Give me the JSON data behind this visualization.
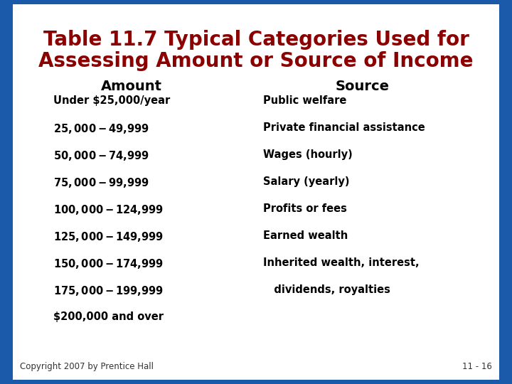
{
  "title_line1": "Table 11.7 Typical Categories Used for",
  "title_line2": "Assessing Amount or Source of Income",
  "title_color": "#8B0000",
  "background_color": "#FFFFFF",
  "border_color": "#1B5AAA",
  "col1_header": "Amount",
  "col2_header": "Source",
  "col1_items": [
    "Under $25,000/year",
    "$25,000-$49,999",
    "$50,000-$74,999",
    "$75,000-$99,999",
    "$100,000-$124,999",
    "$125,000-$149,999",
    "$150,000-$174,999",
    "$175,000-$199,999",
    "$200,000 and over"
  ],
  "col2_items": [
    "Public welfare",
    "Private financial assistance",
    "Wages (hourly)",
    "Salary (yearly)",
    "Profits or fees",
    "Earned wealth",
    "Inherited wealth, interest,",
    "   dividends, royalties"
  ],
  "footer_left": "Copyright 2007 by Prentice Hall",
  "footer_right": "11 - 16",
  "col1_header_fontsize": 14,
  "col2_header_fontsize": 14,
  "item_fontsize": 10.5,
  "title_fontsize": 20,
  "footer_fontsize": 8.5
}
